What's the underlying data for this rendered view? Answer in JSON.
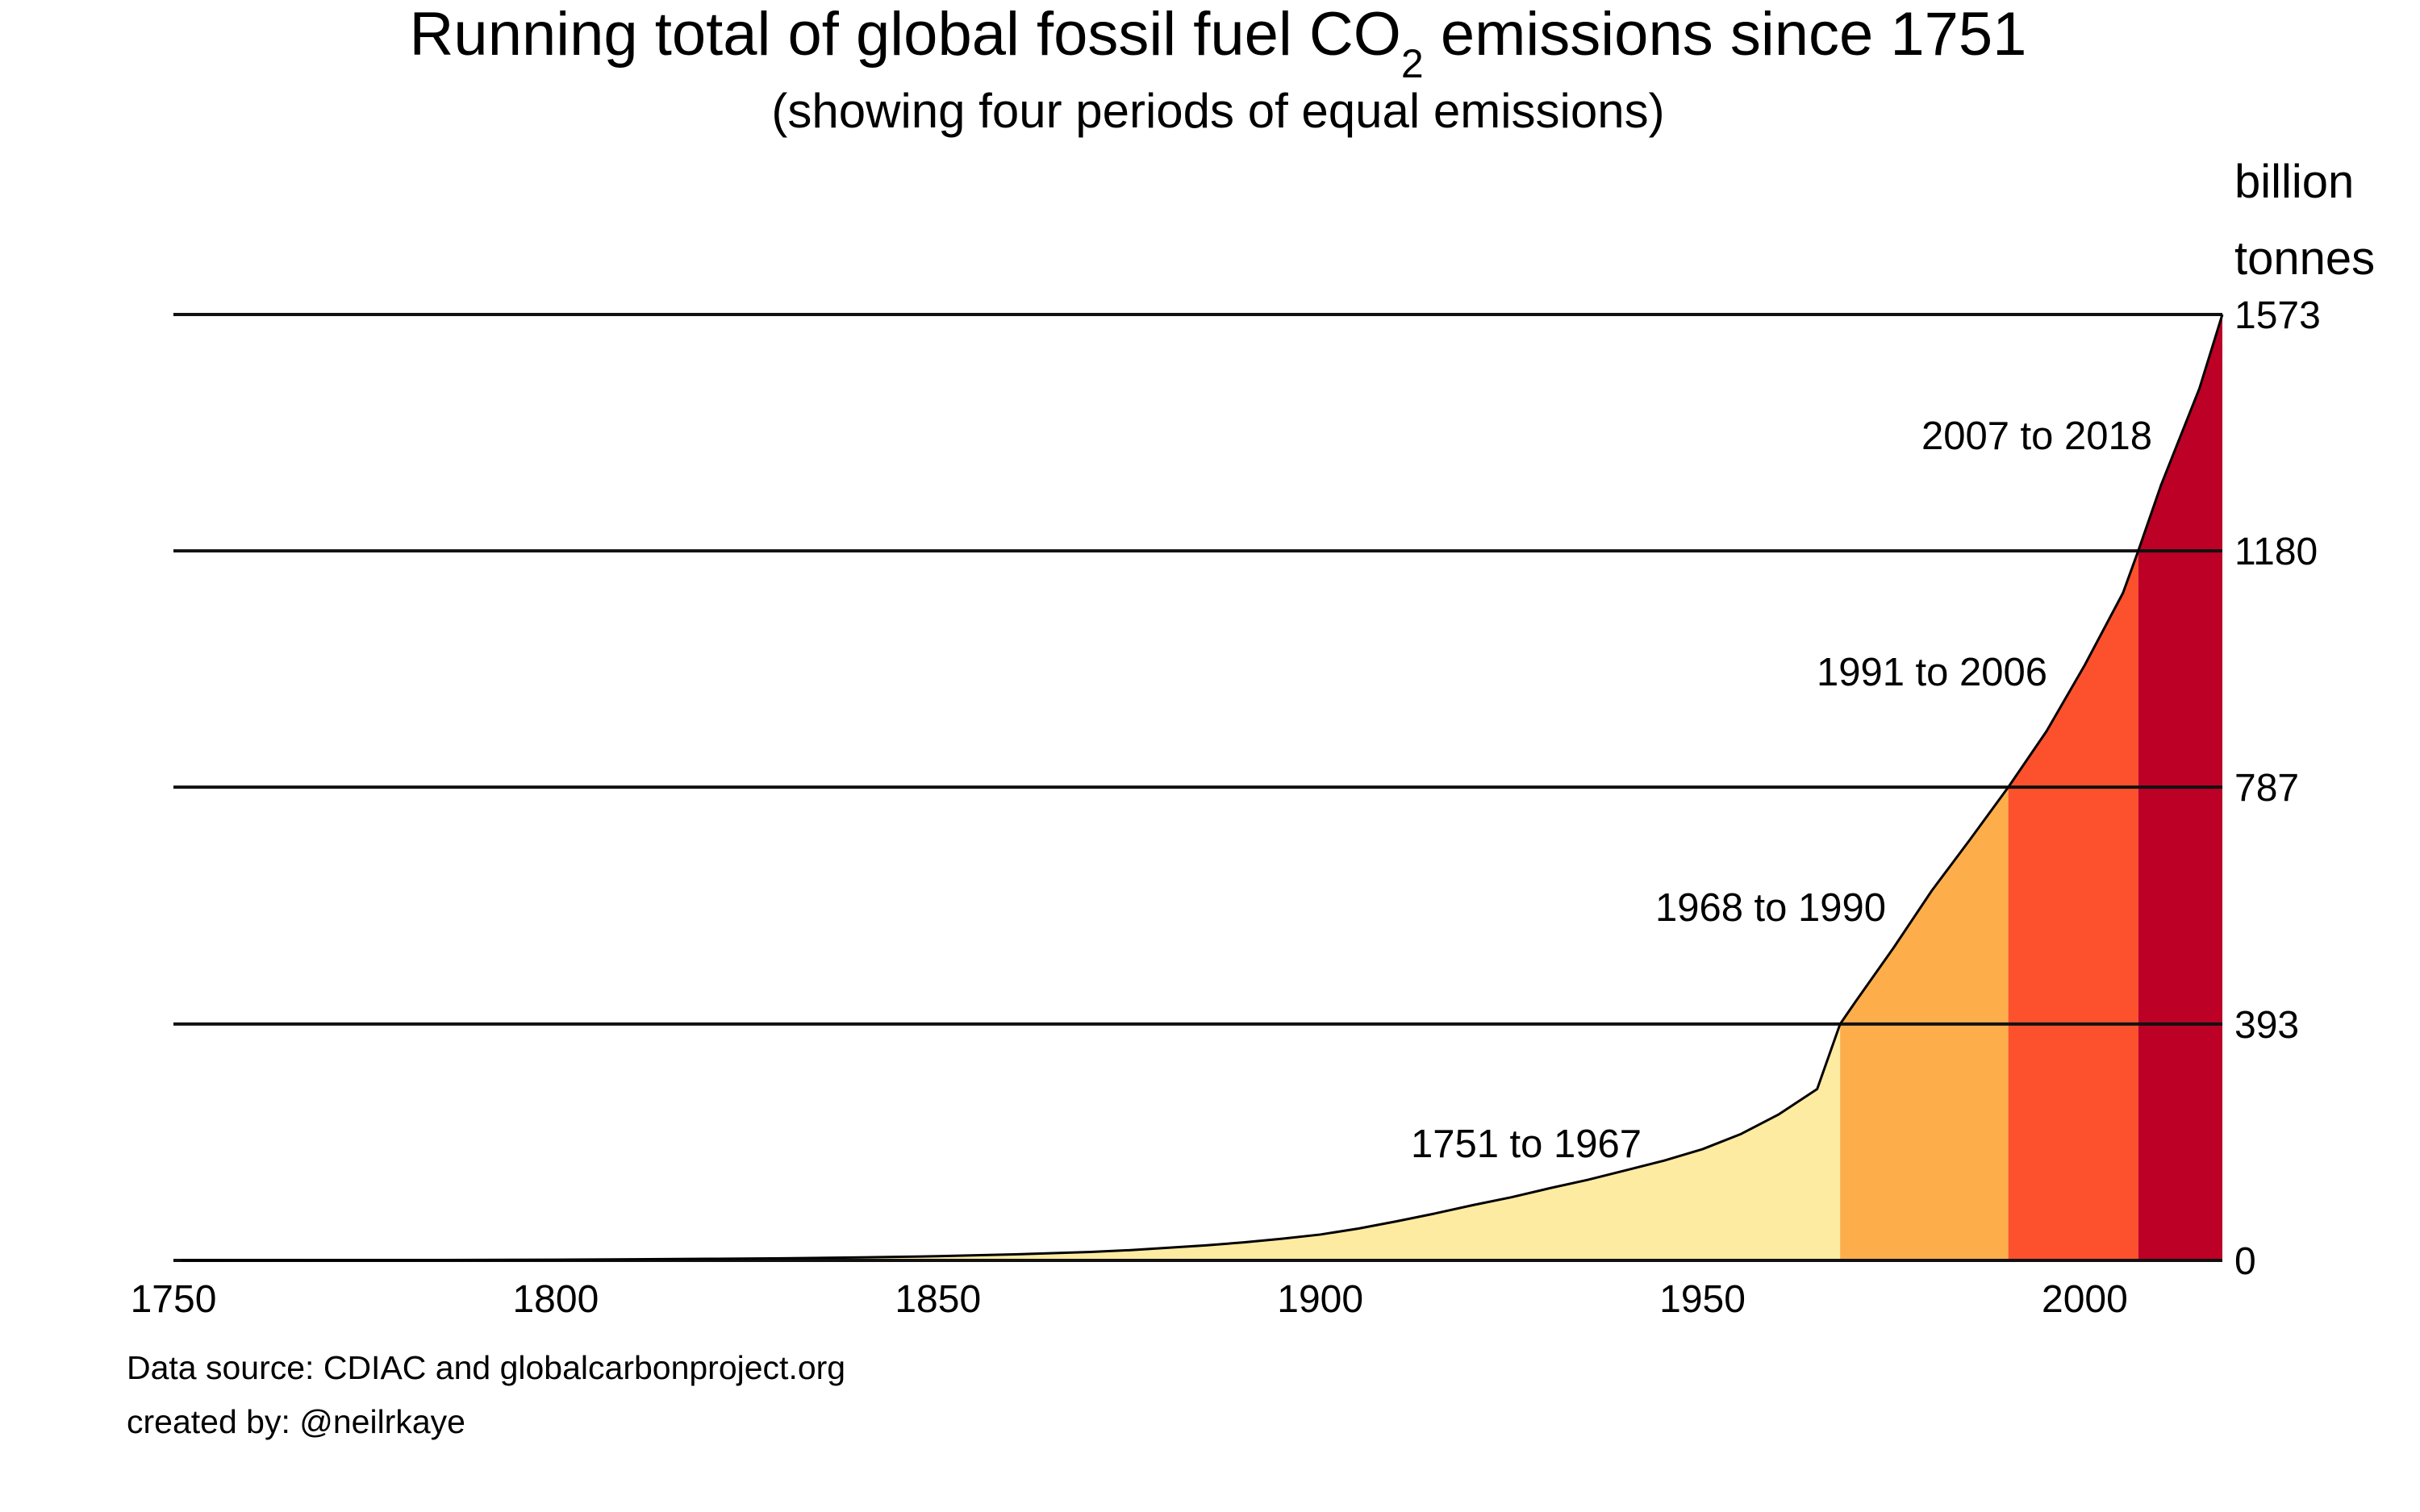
{
  "chart_data": {
    "type": "area",
    "title": {
      "main": "Running total of global fossil fuel CO",
      "subscript": "2",
      "suffix": " emissions since 1751"
    },
    "subtitle": "(showing four periods of equal emissions)",
    "y_unit_line1": "billion",
    "y_unit_line2": "tonnes",
    "xlim": [
      1750,
      2018
    ],
    "ylim": [
      0,
      1573
    ],
    "x_ticks": [
      1750,
      1800,
      1850,
      1900,
      1950,
      2000
    ],
    "y_ticks": [
      0,
      393,
      787,
      1180,
      1573
    ],
    "y_axis_position": "right",
    "gridlines": "horizontal at y ticks",
    "series": [
      {
        "x": [
          1751,
          1760,
          1770,
          1780,
          1790,
          1800,
          1810,
          1820,
          1830,
          1840,
          1850,
          1860,
          1870,
          1875,
          1880,
          1885,
          1890,
          1895,
          1900,
          1905,
          1910,
          1915,
          1920,
          1925,
          1930,
          1935,
          1940,
          1945,
          1950,
          1955,
          1960,
          1965,
          1968,
          1970,
          1975,
          1980,
          1985,
          1990,
          1995,
          2000,
          2005,
          2007,
          2010,
          2015,
          2018
        ],
        "values": [
          0,
          0.1,
          0.3,
          0.5,
          0.8,
          1.2,
          1.8,
          2.6,
          3.6,
          5,
          7,
          10,
          14,
          17,
          21,
          25,
          30,
          36,
          43,
          53,
          65,
          78,
          92,
          105,
          120,
          134,
          150,
          166,
          185,
          210,
          243,
          285,
          393,
          430,
          520,
          615,
          700,
          787,
          880,
          990,
          1110,
          1180,
          1290,
          1450,
          1573
        ]
      }
    ],
    "periods": [
      {
        "label": "1751 to 1967",
        "start": 1751,
        "end": 1968,
        "color": "#feeba2"
      },
      {
        "label": "1968 to 1990",
        "start": 1968,
        "end": 1990,
        "color": "#fdae4b"
      },
      {
        "label": "1991 to 2006",
        "start": 1990,
        "end": 2007,
        "color": "#fc512c"
      },
      {
        "label": "2007 to 2018",
        "start": 2007,
        "end": 2018,
        "color": "#bd0026"
      }
    ]
  },
  "footer": {
    "source": "Data source: CDIAC and globalcarbonproject.org",
    "credit": "created by: @neilrkaye"
  }
}
